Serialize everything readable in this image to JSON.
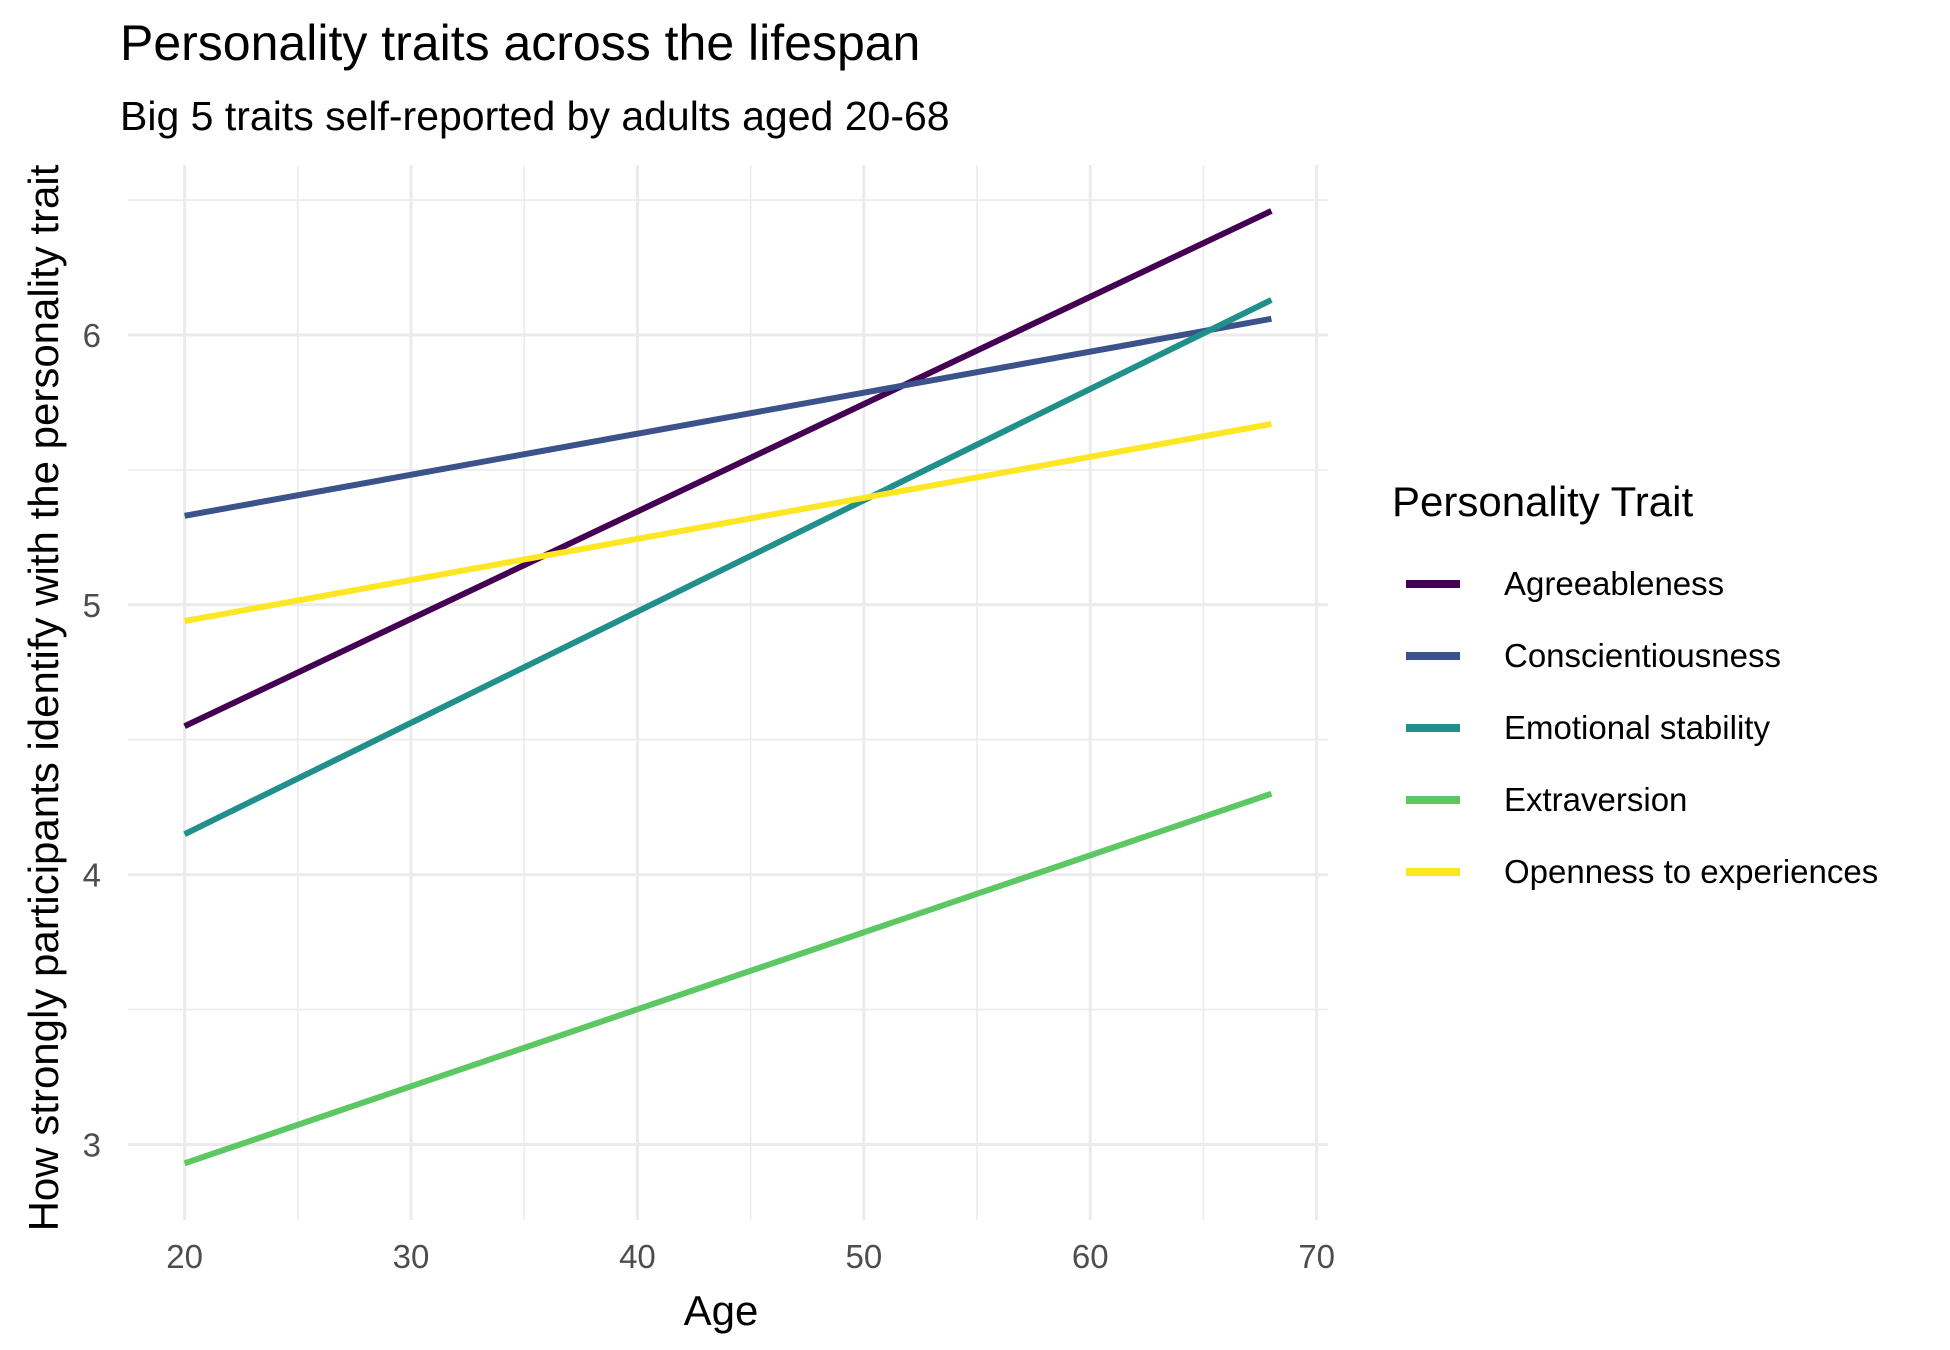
{
  "chart_data": {
    "type": "line",
    "title": "Personality traits across the lifespan",
    "subtitle": "Big 5 traits self-reported by adults aged 20-68",
    "xlabel": "Age",
    "ylabel": "How strongly participants identify with the personality trait",
    "xlim": [
      17.5,
      70.5
    ],
    "ylim": [
      2.72,
      6.63
    ],
    "x_ticks": [
      20,
      30,
      40,
      50,
      60,
      70
    ],
    "y_ticks": [
      3,
      4,
      5,
      6
    ],
    "grid": true,
    "legend_title": "Personality Trait",
    "legend_position": "right",
    "series": [
      {
        "name": "Agreeableness",
        "color": "#440154",
        "x": [
          20,
          68
        ],
        "y": [
          4.55,
          6.46
        ]
      },
      {
        "name": "Conscientiousness",
        "color": "#3B528B",
        "x": [
          20,
          68
        ],
        "y": [
          5.33,
          6.06
        ]
      },
      {
        "name": "Emotional stability",
        "color": "#21908C",
        "x": [
          20,
          68
        ],
        "y": [
          4.15,
          6.13
        ]
      },
      {
        "name": "Extraversion",
        "color": "#5DC863",
        "x": [
          20,
          68
        ],
        "y": [
          2.93,
          4.3
        ]
      },
      {
        "name": "Openness to experiences",
        "color": "#FDE725",
        "x": [
          20,
          68
        ],
        "y": [
          4.94,
          5.67
        ]
      }
    ]
  }
}
